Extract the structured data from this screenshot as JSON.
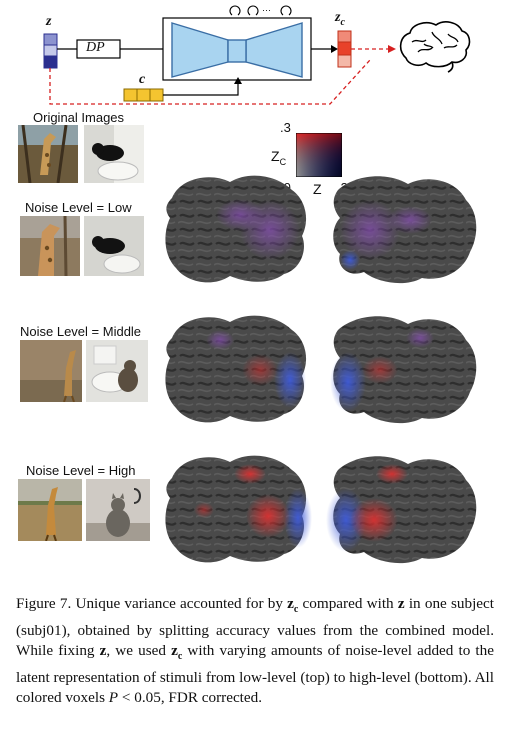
{
  "diagram": {
    "z_label": "z",
    "dp_label": "DP",
    "c_label": "c",
    "zc_label": "zc",
    "loops_label": "↻↻···↻"
  },
  "rows": [
    {
      "label": "Original Images"
    },
    {
      "label": "Noise Level = Low"
    },
    {
      "label": "Noise Level = Middle"
    },
    {
      "label": "Noise Level = High"
    }
  ],
  "colorbar": {
    "y_max": ".3",
    "y_min": ".0",
    "x_max": ".3",
    "y_axis": "zC",
    "x_axis": "z"
  },
  "colors": {
    "encoder": "#a9d4f0",
    "encoder_stroke": "#3a6ea5",
    "z_dark": "#2b2f8f",
    "zc_red": "#e8422a",
    "c_yellow": "#f4c430",
    "dashed_red": "#d62020",
    "cortex": "#4a4a4a",
    "red_voxel": "#e03030",
    "blue_voxel": "#3f5bd8"
  },
  "caption": {
    "fig": "Figure 7.",
    "p1": " Unique variance accounted for by ",
    "zc": "z",
    "zc_sub": "c",
    "p2": " compared with ",
    "z": "z",
    "p3": " in one subject (subj01), obtained by splitting accuracy values from the combined model. While fixing ",
    "p4": ", we used ",
    "p5": " with varying amounts of noise-level added to the latent representation of stimuli from low-level (top) to high-level (bottom). All colored voxels ",
    "p_sym": "P",
    "p6": " < 0.05, FDR corrected."
  }
}
